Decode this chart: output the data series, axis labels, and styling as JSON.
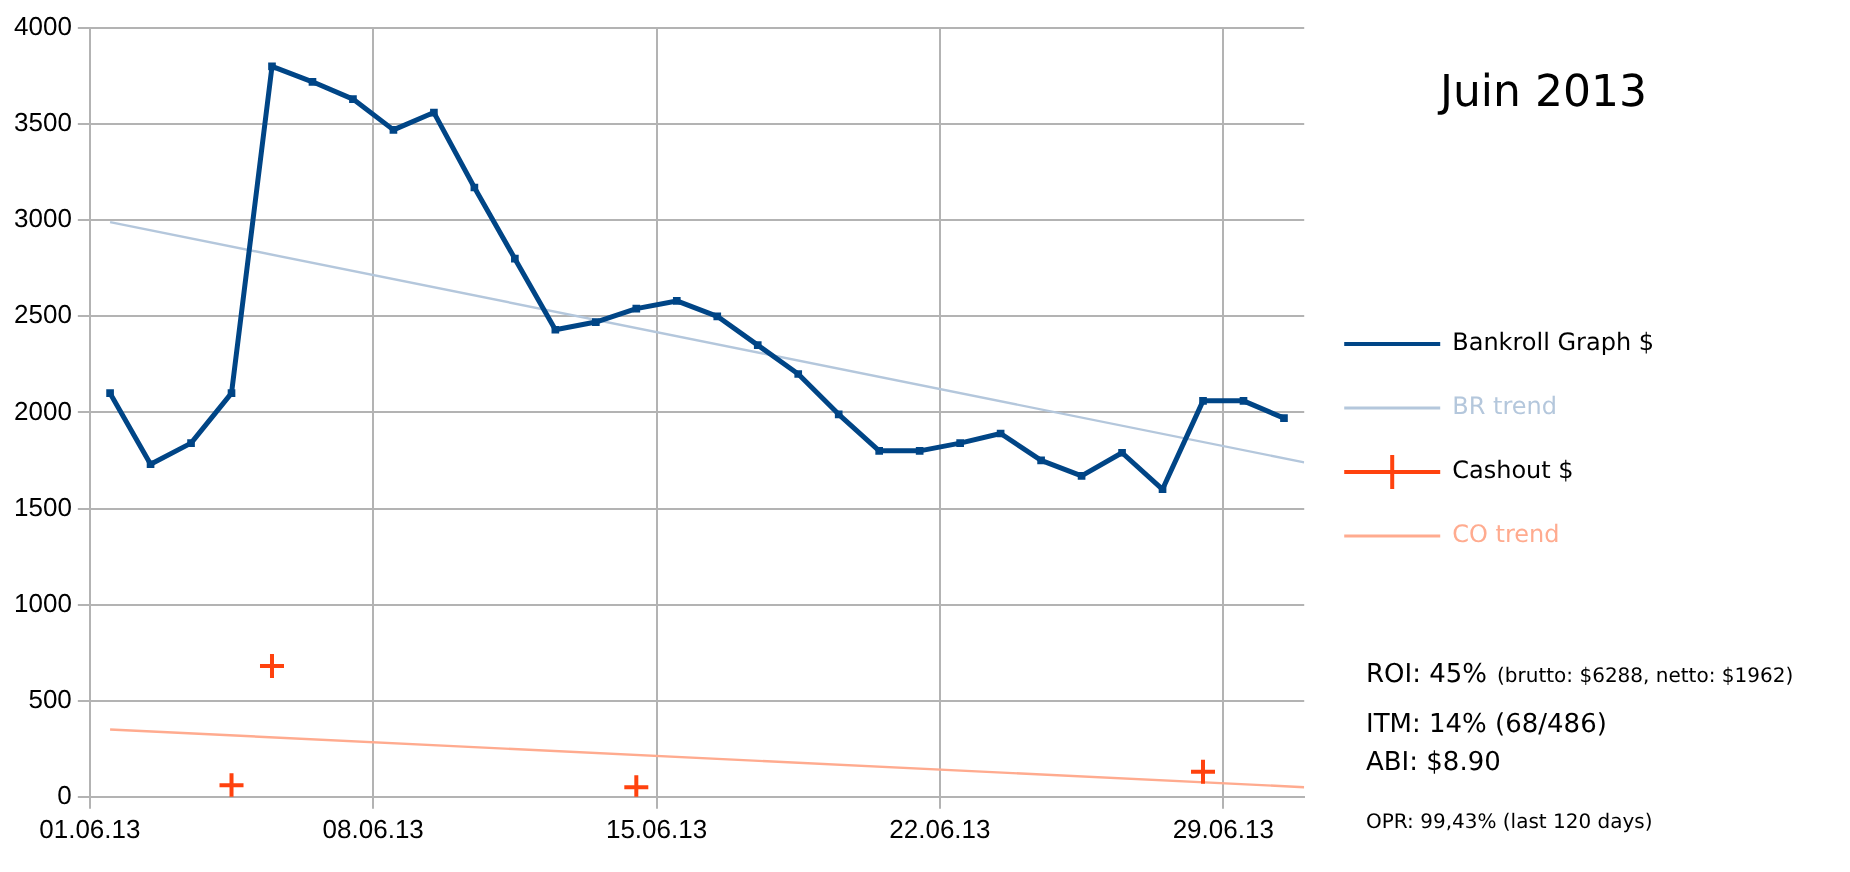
{
  "chart_data": {
    "type": "line",
    "title": "Juin 2013",
    "xlim": [
      "2013-06-01",
      "2013-07-01"
    ],
    "xticks": [
      {
        "value": "2013-06-01",
        "label": "01.06.13"
      },
      {
        "value": "2013-06-08",
        "label": "08.06.13"
      },
      {
        "value": "2013-06-15",
        "label": "15.06.13"
      },
      {
        "value": "2013-06-22",
        "label": "22.06.13"
      },
      {
        "value": "2013-06-29",
        "label": "29.06.13"
      }
    ],
    "ylim": [
      0,
      4000
    ],
    "yticks": [
      0,
      500,
      1000,
      1500,
      2000,
      2500,
      3000,
      3500,
      4000
    ],
    "grid": true,
    "legend": "right",
    "series": [
      {
        "name": "Bankroll Graph $",
        "marker": "square",
        "color": "#004586",
        "x": [
          "2013-06-01T12:00",
          "2013-06-02T12:00",
          "2013-06-03T12:00",
          "2013-06-04T12:00",
          "2013-06-05T12:00",
          "2013-06-06T12:00",
          "2013-06-07T12:00",
          "2013-06-08T12:00",
          "2013-06-09T12:00",
          "2013-06-10T12:00",
          "2013-06-11T12:00",
          "2013-06-12T12:00",
          "2013-06-13T12:00",
          "2013-06-14T12:00",
          "2013-06-15T12:00",
          "2013-06-16T12:00",
          "2013-06-17T12:00",
          "2013-06-18T12:00",
          "2013-06-19T12:00",
          "2013-06-20T12:00",
          "2013-06-21T12:00",
          "2013-06-22T12:00",
          "2013-06-23T12:00",
          "2013-06-24T12:00",
          "2013-06-25T12:00",
          "2013-06-26T12:00",
          "2013-06-27T12:00",
          "2013-06-28T12:00",
          "2013-06-29T12:00",
          "2013-06-30T12:00"
        ],
        "values": [
          2100,
          1730,
          1840,
          2100,
          3800,
          3720,
          3630,
          3470,
          3560,
          3170,
          2800,
          2430,
          2470,
          2540,
          2580,
          2500,
          2350,
          2200,
          1990,
          1800,
          1800,
          1840,
          1890,
          1750,
          1670,
          1790,
          1600,
          2060,
          2060,
          1970
        ]
      },
      {
        "name": "BR trend",
        "marker": "none",
        "color": "#b4c7dc",
        "x": [
          "2013-06-01T12:00",
          "2013-07-01"
        ],
        "values": [
          2990,
          1740
        ]
      },
      {
        "name": "Cashout $",
        "type": "scatter",
        "marker": "cross",
        "color": "#ff420e",
        "x": [
          "2013-06-04T12:00",
          "2013-06-05T12:00",
          "2013-06-14T12:00",
          "2013-06-28T12:00"
        ],
        "values": [
          60,
          680,
          50,
          130
        ]
      },
      {
        "name": "CO trend",
        "marker": "none",
        "color": "#ffab8f",
        "x": [
          "2013-06-01T12:00",
          "2013-07-01"
        ],
        "values": [
          350,
          50
        ]
      }
    ],
    "annotations": [
      "ROI: 45%",
      "(brutto: $6288, netto: $1962)",
      "ITM: 14% (68/486)",
      "ABI: $8.90",
      "OPR: 99,43% (last 120 days)"
    ]
  }
}
